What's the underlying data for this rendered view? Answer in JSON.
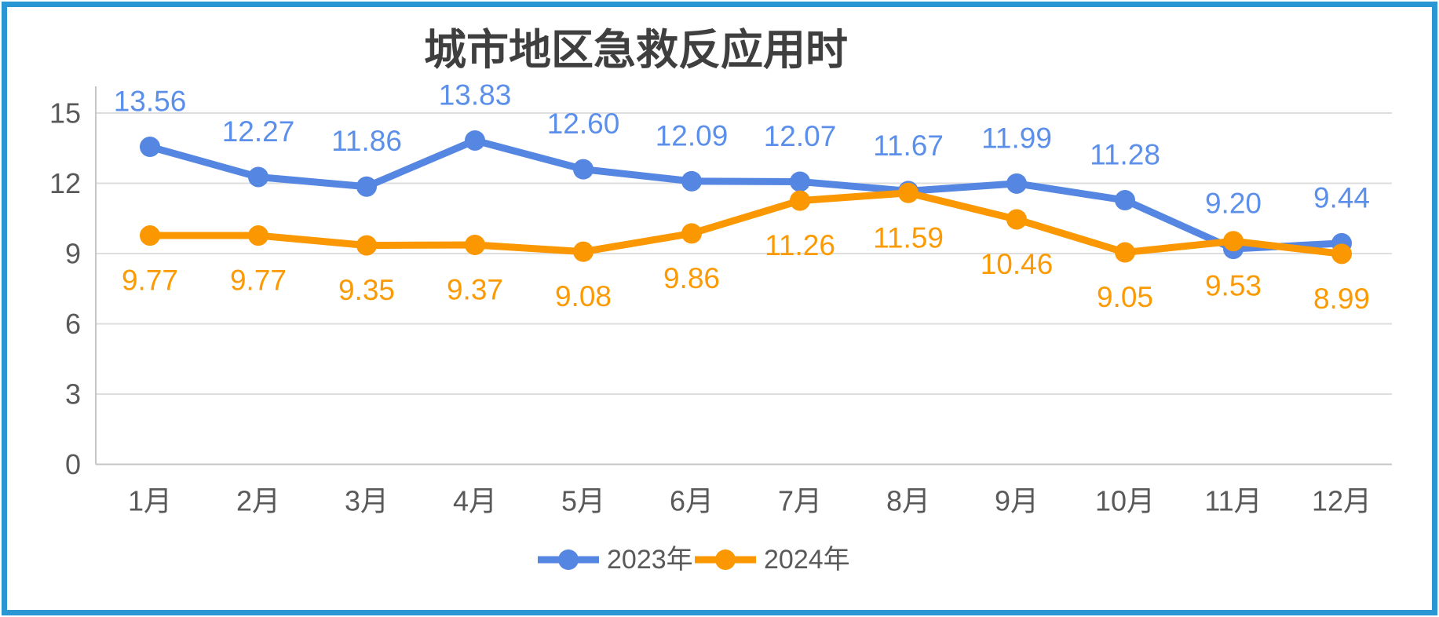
{
  "frame": {
    "border_color": "#2A96D3",
    "background": "#FFFFFF"
  },
  "chart_data": {
    "type": "line",
    "title": "城市地区急救反应用时",
    "categories": [
      "1月",
      "2月",
      "3月",
      "4月",
      "5月",
      "6月",
      "7月",
      "8月",
      "9月",
      "10月",
      "11月",
      "12月"
    ],
    "series": [
      {
        "name": "2023年",
        "color": "#5586E1",
        "label_color": "#5C8FEA",
        "label_position": "above",
        "values": [
          13.56,
          12.27,
          11.86,
          13.83,
          12.6,
          12.09,
          12.07,
          11.67,
          11.99,
          11.28,
          9.2,
          9.44
        ]
      },
      {
        "name": "2024年",
        "color": "#FA9701",
        "label_color": "#FB9A02",
        "label_position": "below",
        "values": [
          9.77,
          9.77,
          9.35,
          9.37,
          9.08,
          9.86,
          11.26,
          11.59,
          10.46,
          9.05,
          9.53,
          8.99
        ]
      }
    ],
    "y_axis": {
      "min": 0,
      "max": 15,
      "step": 3,
      "ticks": [
        0,
        3,
        6,
        9,
        12,
        15
      ]
    },
    "x_axis_label": "",
    "ylabel": "",
    "grid": true,
    "legend_position": "bottom",
    "value_label_decimals": 2,
    "colors": {
      "grid": "#DEDEDE",
      "axis": "#C6C6C6",
      "tick_text": "#595959",
      "month_text": "#595959",
      "legend_text": "#595959",
      "title_text": "#3F3F3F"
    }
  }
}
